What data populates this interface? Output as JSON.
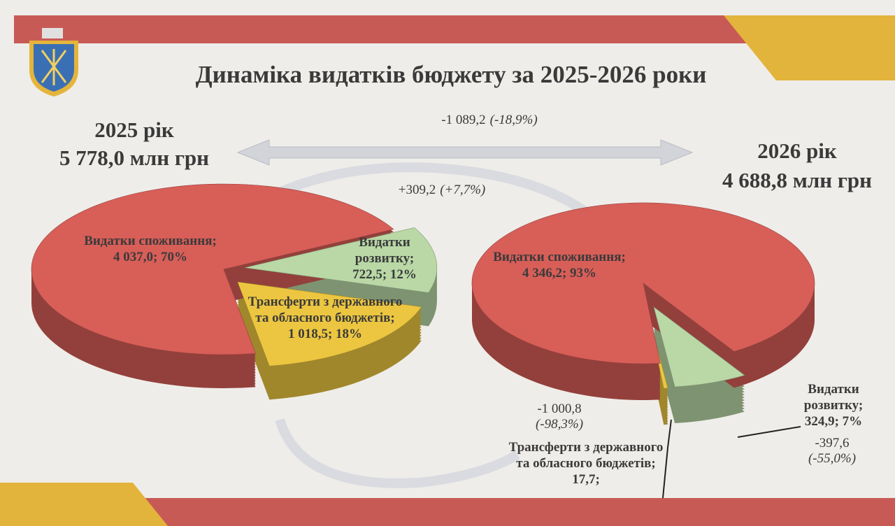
{
  "title": "Динаміка видатків бюджету за 2025-2026 роки",
  "changes": [
    {
      "value": "-1 089,2",
      "percent": "(-18,9%)"
    },
    {
      "value": "+309,2",
      "percent": "(+7,7%)"
    },
    {
      "value": "-1 000,8",
      "percent": "(-98,3%)"
    },
    {
      "value": "-397,6",
      "percent": "(-55,0%)"
    }
  ],
  "chart_data": [
    {
      "type": "pie",
      "title": "2025 рік",
      "subtitle": "5 778,0 млн грн",
      "categories": [
        "Видатки споживання;",
        "Трансферти з державного та обласного бюджетів;",
        "Видатки розвитку;"
      ],
      "values": [
        4037.0,
        1018.5,
        722.5
      ],
      "value_labels": [
        "4 037,0; 70%",
        "1 018,5; 18%",
        "722,5; 12%"
      ],
      "colors": [
        "#d85e58",
        "#ecc640",
        "#b9d8a6"
      ]
    },
    {
      "type": "pie",
      "title": "2026 рік",
      "subtitle": "4 688,8 млн грн",
      "categories": [
        "Видатки споживання;",
        "Трансферти з державного та обласного бюджетів;",
        "Видатки розвитку;"
      ],
      "values": [
        4346.2,
        17.7,
        324.9
      ],
      "value_labels": [
        "4 346,2; 93%",
        "17,7;",
        "324,9; 7%"
      ],
      "colors": [
        "#d85e58",
        "#ecc640",
        "#b9d8a6"
      ]
    }
  ]
}
